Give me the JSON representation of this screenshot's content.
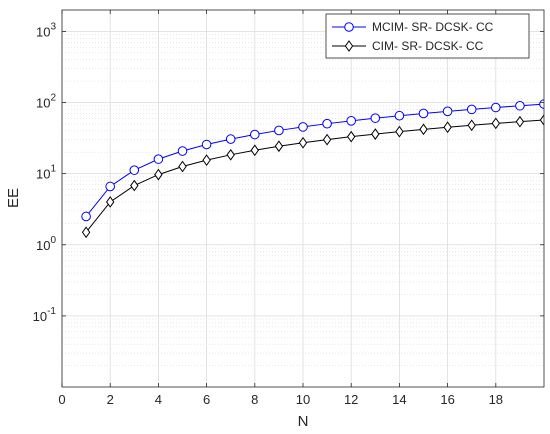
{
  "chart_data": {
    "type": "line",
    "title": "",
    "xlabel": "N",
    "ylabel": "EE",
    "xlim": [
      0,
      20
    ],
    "ylim": [
      0.01,
      2000
    ],
    "y_scale": "log",
    "grid": true,
    "minor_grid": true,
    "legend_position": "top-right",
    "x_ticks": [
      0,
      2,
      4,
      6,
      8,
      10,
      12,
      14,
      16,
      18
    ],
    "x_tick_labels": [
      "0",
      "2",
      "4",
      "6",
      "8",
      "10",
      "12",
      "14",
      "16",
      "18"
    ],
    "y_ticks": [
      0.1,
      1,
      10,
      100,
      1000
    ],
    "y_tick_labels": [
      {
        "base": "10",
        "exp": "-1"
      },
      {
        "base": "10",
        "exp": "0"
      },
      {
        "base": "10",
        "exp": "1"
      },
      {
        "base": "10",
        "exp": "2"
      },
      {
        "base": "10",
        "exp": "3"
      }
    ],
    "x": [
      1,
      2,
      3,
      4,
      5,
      6,
      7,
      8,
      9,
      10,
      11,
      12,
      13,
      14,
      15,
      16,
      17,
      18,
      19,
      20
    ],
    "series": [
      {
        "name": "MCIM- SR- DCSK- CC",
        "color": "#0000ff",
        "marker": "circle",
        "values": [
          2.5,
          6.6,
          11.2,
          16,
          20.8,
          25.7,
          30.6,
          35.5,
          40.5,
          45.4,
          50.4,
          55.3,
          60.3,
          65.2,
          70.2,
          75.2,
          80.1,
          85.1,
          90.0,
          95.0
        ]
      },
      {
        "name": "CIM- SR- DCSK- CC",
        "color": "#000000",
        "marker": "diamond",
        "values": [
          1.5,
          4.0,
          6.8,
          9.7,
          12.6,
          15.5,
          18.4,
          21.3,
          24.3,
          27.2,
          30.1,
          33.1,
          36.0,
          39.0,
          42.0,
          44.9,
          47.9,
          50.9,
          53.8,
          56.8
        ]
      }
    ]
  }
}
